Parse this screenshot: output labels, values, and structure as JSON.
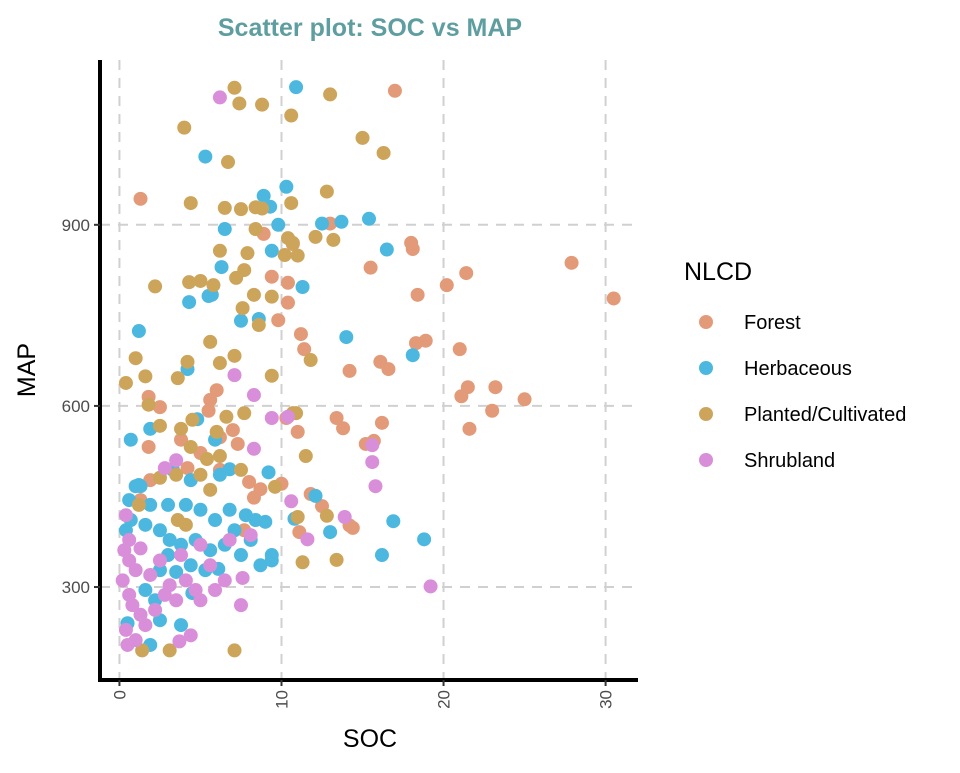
{
  "chart_data": {
    "type": "scatter",
    "title": "Scatter plot: SOC vs MAP",
    "xlabel": "SOC",
    "ylabel": "MAP",
    "xlim": [
      -1.2,
      32
    ],
    "ylim": [
      146,
      1173
    ],
    "xticks": [
      0,
      10,
      20,
      30
    ],
    "yticks": [
      300,
      600,
      900
    ],
    "grid": true,
    "legend": {
      "title": "NLCD",
      "placement": "right"
    },
    "series": [
      {
        "name": "Forest",
        "color": "#E39A78",
        "points": [
          [
            17,
            1122
          ],
          [
            1.3,
            943
          ],
          [
            13,
            902
          ],
          [
            27.9,
            837
          ],
          [
            30.5,
            778
          ],
          [
            21.4,
            820
          ],
          [
            20.2,
            800
          ],
          [
            18.4,
            784
          ],
          [
            18,
            870
          ],
          [
            18.1,
            860
          ],
          [
            15.5,
            829
          ],
          [
            18.9,
            708
          ],
          [
            18.3,
            704
          ],
          [
            21,
            694
          ],
          [
            11.2,
            719
          ],
          [
            11.4,
            694
          ],
          [
            16.6,
            661
          ],
          [
            16.1,
            673
          ],
          [
            14.2,
            658
          ],
          [
            21.5,
            631
          ],
          [
            23.2,
            631
          ],
          [
            21.1,
            616
          ],
          [
            25,
            611
          ],
          [
            23,
            592
          ],
          [
            21.6,
            562
          ],
          [
            13.4,
            580
          ],
          [
            13.8,
            563
          ],
          [
            16.2,
            572
          ],
          [
            15.7,
            542
          ],
          [
            15.2,
            537
          ],
          [
            14.2,
            402
          ],
          [
            14.4,
            398
          ],
          [
            12.5,
            434
          ],
          [
            9.8,
            742
          ],
          [
            10.4,
            771
          ],
          [
            10.4,
            804
          ],
          [
            9.4,
            814
          ],
          [
            8.9,
            885
          ],
          [
            10.7,
            868
          ],
          [
            1.8,
            615
          ],
          [
            2.5,
            598
          ],
          [
            1.8,
            532
          ],
          [
            5.5,
            592
          ],
          [
            5.6,
            610
          ],
          [
            6,
            626
          ],
          [
            6.2,
            548
          ],
          [
            7,
            560
          ],
          [
            7.3,
            537
          ],
          [
            10.3,
            580
          ],
          [
            11,
            557
          ],
          [
            8,
            474
          ],
          [
            10,
            471
          ],
          [
            8.7,
            462
          ],
          [
            8.3,
            448
          ],
          [
            11.8,
            454
          ],
          [
            11.1,
            391
          ],
          [
            7.7,
            394
          ],
          [
            3.8,
            544
          ],
          [
            5,
            522
          ],
          [
            4.2,
            497
          ],
          [
            6.2,
            494
          ],
          [
            1.3,
            444
          ],
          [
            1.9,
            477
          ]
        ]
      },
      {
        "name": "Herbaceous",
        "color": "#4CB8E0",
        "points": [
          [
            10.9,
            1128
          ],
          [
            5.3,
            1013
          ],
          [
            10.3,
            963
          ],
          [
            8.9,
            948
          ],
          [
            9.3,
            930
          ],
          [
            9.8,
            900
          ],
          [
            12.5,
            902
          ],
          [
            13.7,
            905
          ],
          [
            15.4,
            910
          ],
          [
            16.5,
            859
          ],
          [
            9.4,
            857
          ],
          [
            6.5,
            893
          ],
          [
            6.3,
            830
          ],
          [
            4.3,
            772
          ],
          [
            5.5,
            782
          ],
          [
            5.7,
            784
          ],
          [
            11.3,
            797
          ],
          [
            7.5,
            741
          ],
          [
            8.6,
            744
          ],
          [
            14,
            714
          ],
          [
            18.1,
            684
          ],
          [
            4.2,
            661
          ],
          [
            1.2,
            724
          ],
          [
            1.9,
            562
          ],
          [
            4.8,
            578
          ],
          [
            5.9,
            544
          ],
          [
            6.8,
            495
          ],
          [
            9.2,
            490
          ],
          [
            12.1,
            451
          ],
          [
            16.9,
            409
          ],
          [
            18.8,
            379
          ],
          [
            16.2,
            353
          ],
          [
            9.4,
            353
          ],
          [
            13,
            391
          ],
          [
            10.8,
            413
          ],
          [
            9,
            408
          ],
          [
            0.6,
            444
          ],
          [
            1,
            467
          ],
          [
            1.3,
            467
          ],
          [
            0.7,
            411
          ],
          [
            0.4,
            394
          ],
          [
            1.6,
            403
          ],
          [
            2.5,
            394
          ],
          [
            3.1,
            378
          ],
          [
            3.8,
            370
          ],
          [
            4.7,
            378
          ],
          [
            5.6,
            361
          ],
          [
            6.5,
            370
          ],
          [
            7.5,
            353
          ],
          [
            8.1,
            378
          ],
          [
            7.1,
            394
          ],
          [
            5.9,
            411
          ],
          [
            5,
            428
          ],
          [
            4.1,
            436
          ],
          [
            3,
            436
          ],
          [
            1.9,
            436
          ],
          [
            2.5,
            328
          ],
          [
            3.5,
            325
          ],
          [
            4.4,
            336
          ],
          [
            5.3,
            328
          ],
          [
            3,
            353
          ],
          [
            1.6,
            295
          ],
          [
            2.2,
            278
          ],
          [
            3.8,
            237
          ],
          [
            1.9,
            204
          ],
          [
            0.5,
            240
          ],
          [
            2.5,
            245
          ],
          [
            4.5,
            290
          ],
          [
            6.1,
            330
          ],
          [
            7.8,
            419
          ],
          [
            8.4,
            411
          ],
          [
            4.4,
            477
          ],
          [
            3.3,
            494
          ],
          [
            6.2,
            486
          ],
          [
            0.7,
            544
          ],
          [
            1.2,
            469
          ],
          [
            6.8,
            428
          ],
          [
            8.7,
            336
          ],
          [
            9.4,
            344
          ]
        ]
      },
      {
        "name": "Planted/Cultivated",
        "color": "#CDA55A",
        "points": [
          [
            7.1,
            1127
          ],
          [
            7.4,
            1101
          ],
          [
            8.8,
            1099
          ],
          [
            13,
            1116
          ],
          [
            10.6,
            1081
          ],
          [
            4,
            1061
          ],
          [
            15,
            1044
          ],
          [
            6.7,
            1004
          ],
          [
            16.3,
            1019
          ],
          [
            12.8,
            955
          ],
          [
            4.4,
            936
          ],
          [
            6.5,
            928
          ],
          [
            7.5,
            926
          ],
          [
            8.4,
            929
          ],
          [
            8.8,
            927
          ],
          [
            10.6,
            936
          ],
          [
            10.4,
            878
          ],
          [
            10.7,
            870
          ],
          [
            11,
            849
          ],
          [
            10.2,
            850
          ],
          [
            12.1,
            880
          ],
          [
            13.2,
            875
          ],
          [
            8.4,
            893
          ],
          [
            6.2,
            857
          ],
          [
            7.9,
            853
          ],
          [
            7.7,
            825
          ],
          [
            7.2,
            812
          ],
          [
            5.8,
            800
          ],
          [
            5,
            807
          ],
          [
            4.3,
            805
          ],
          [
            2.2,
            798
          ],
          [
            8.3,
            784
          ],
          [
            9.4,
            781
          ],
          [
            7.6,
            762
          ],
          [
            8.6,
            734
          ],
          [
            1,
            679
          ],
          [
            1.6,
            649
          ],
          [
            0.4,
            638
          ],
          [
            4.2,
            673
          ],
          [
            5.6,
            706
          ],
          [
            6.2,
            671
          ],
          [
            7.1,
            683
          ],
          [
            9.4,
            650
          ],
          [
            11.8,
            676
          ],
          [
            10.7,
            588
          ],
          [
            7.7,
            588
          ],
          [
            3.6,
            646
          ],
          [
            2.5,
            567
          ],
          [
            4.4,
            532
          ],
          [
            6.2,
            517
          ],
          [
            9.6,
            466
          ],
          [
            11.5,
            517
          ],
          [
            10.9,
            588
          ],
          [
            11,
            416
          ],
          [
            12.8,
            418
          ],
          [
            11.3,
            341
          ],
          [
            13.4,
            345
          ],
          [
            7.1,
            195
          ],
          [
            1.4,
            195
          ],
          [
            3.1,
            195
          ],
          [
            3.5,
            486
          ],
          [
            5,
            486
          ],
          [
            7.5,
            494
          ],
          [
            2.5,
            481
          ],
          [
            5.6,
            461
          ],
          [
            3.6,
            411
          ],
          [
            1.2,
            436
          ],
          [
            4.1,
            403
          ],
          [
            1.8,
            602
          ],
          [
            3.8,
            562
          ],
          [
            4.5,
            577
          ],
          [
            6,
            557
          ],
          [
            6.6,
            582
          ],
          [
            5.4,
            512
          ]
        ]
      },
      {
        "name": "Shrubland",
        "color": "#D98ED9",
        "points": [
          [
            6.2,
            1111
          ],
          [
            7.1,
            651
          ],
          [
            8.3,
            618
          ],
          [
            10.4,
            582
          ],
          [
            15.6,
            535
          ],
          [
            15.6,
            507
          ],
          [
            15.8,
            467
          ],
          [
            19.2,
            301
          ],
          [
            7.5,
            270
          ],
          [
            7.6,
            315
          ],
          [
            3.7,
            210
          ],
          [
            8.3,
            529
          ],
          [
            9.4,
            580
          ],
          [
            10.6,
            442
          ],
          [
            13.9,
            416
          ],
          [
            11.6,
            379
          ],
          [
            3.5,
            510
          ],
          [
            2.8,
            497
          ],
          [
            0.4,
            419
          ],
          [
            0.3,
            361
          ],
          [
            0.6,
            344
          ],
          [
            1,
            328
          ],
          [
            0.2,
            311
          ],
          [
            0.6,
            287
          ],
          [
            0.8,
            270
          ],
          [
            1.3,
            254
          ],
          [
            0.4,
            229
          ],
          [
            1,
            212
          ],
          [
            1.6,
            237
          ],
          [
            2.2,
            262
          ],
          [
            2.8,
            287
          ],
          [
            3.5,
            278
          ],
          [
            4.1,
            311
          ],
          [
            4.7,
            295
          ],
          [
            3.1,
            303
          ],
          [
            1.9,
            320
          ],
          [
            2.5,
            344
          ],
          [
            1.3,
            364
          ],
          [
            3.8,
            353
          ],
          [
            5,
            370
          ],
          [
            5.6,
            336
          ],
          [
            6.5,
            311
          ],
          [
            4.4,
            220
          ],
          [
            0.5,
            204
          ],
          [
            5.9,
            295
          ],
          [
            5,
            278
          ],
          [
            6.8,
            378
          ],
          [
            8.1,
            386
          ],
          [
            0.6,
            378
          ]
        ]
      }
    ]
  }
}
